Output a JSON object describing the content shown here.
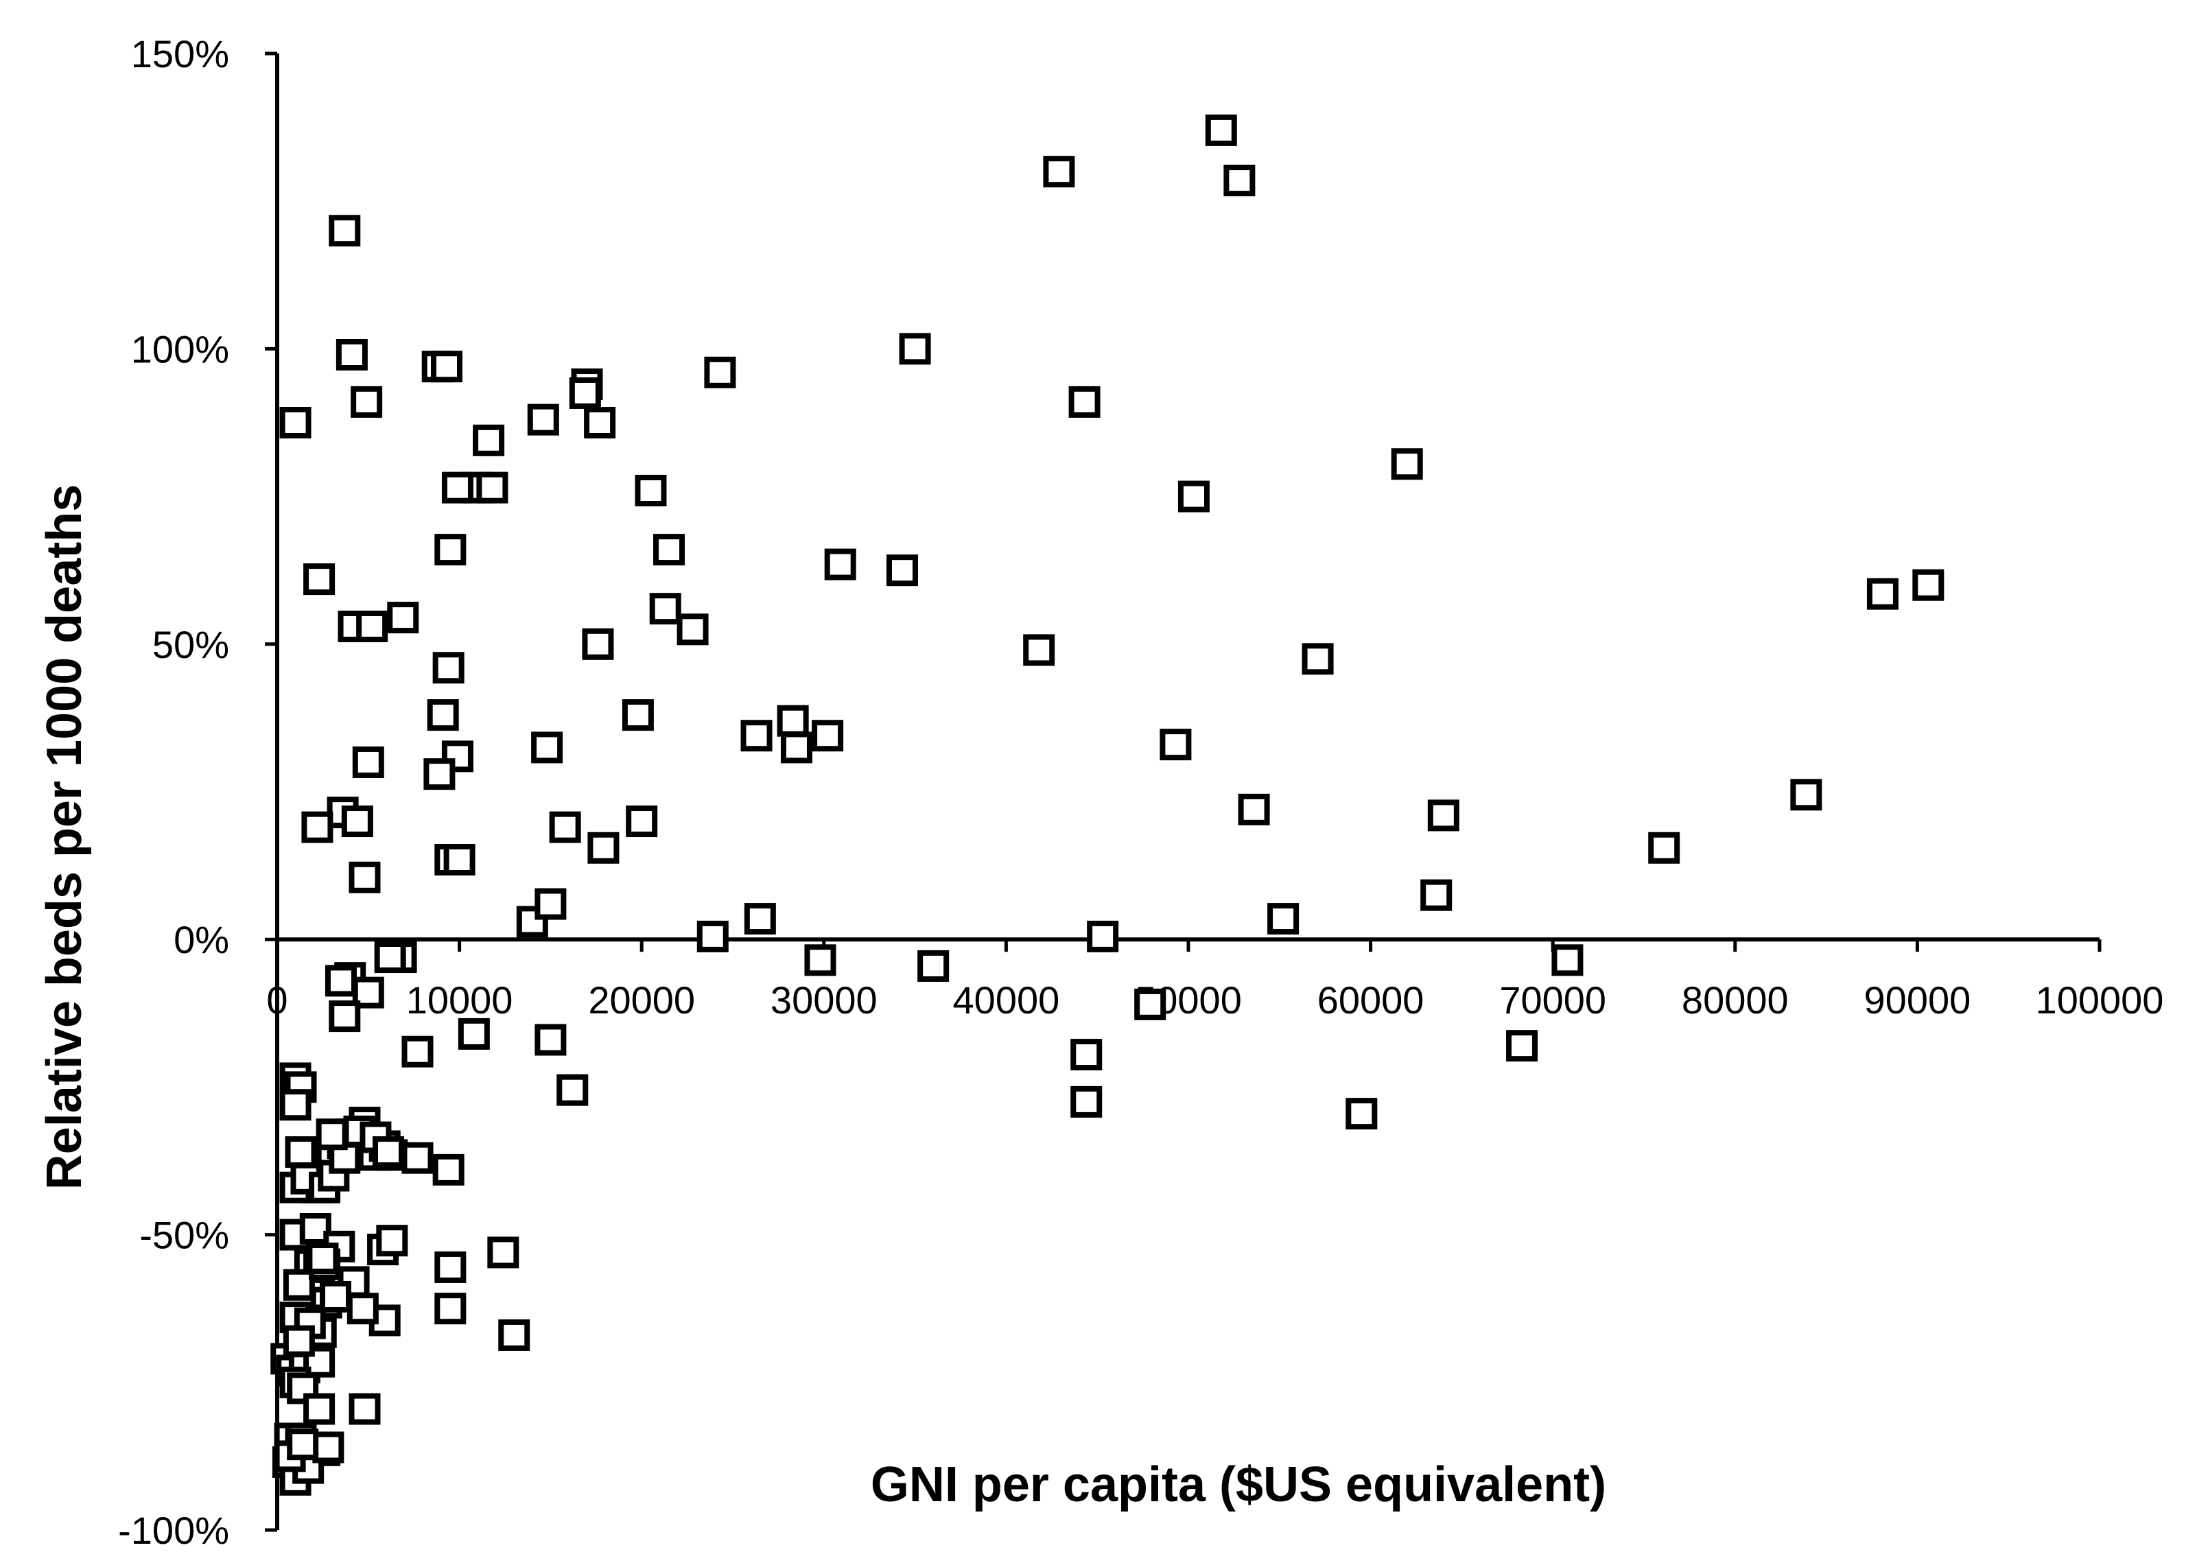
{
  "chart_data": {
    "type": "scatter",
    "xlabel": "GNI per capita ($US equivalent)",
    "ylabel": "Relative beds per 1000 deaths",
    "xlim": [
      0,
      100000
    ],
    "ylim": [
      -100,
      150
    ],
    "x_ticks": [
      0,
      10000,
      20000,
      30000,
      40000,
      50000,
      60000,
      70000,
      80000,
      90000,
      100000
    ],
    "x_tick_labels": [
      "0",
      "10000",
      "20000",
      "30000",
      "40000",
      "50000",
      "60000",
      "70000",
      "80000",
      "90000",
      "100000"
    ],
    "y_ticks": [
      150,
      100,
      50,
      0,
      -50,
      -100
    ],
    "y_tick_labels": [
      "150%",
      "100%",
      "50%",
      "0%",
      "-50%",
      "-100%"
    ],
    "grid": false,
    "legend": false,
    "marker": "hollow-square",
    "series": [
      {
        "x": [
          3700,
          4100,
          1000,
          2300,
          4900,
          4200,
          5200,
          6900,
          8800,
          9300,
          11600,
          14600,
          17000,
          16900,
          17700,
          24300,
          11000,
          9900,
          11800,
          20500,
          9500,
          21500,
          21300,
          22800,
          17600,
          19800,
          4800,
          14800,
          9400,
          9100,
          9900,
          8900,
          9500,
          10000,
          3600,
          2200,
          5000,
          4400,
          15800,
          17900,
          20000,
          14000,
          15000,
          26300,
          28300,
          28500,
          30200,
          26500,
          23900,
          35000,
          34300,
          30900,
          42900,
          44300,
          51800,
          52800,
          50300,
          49300,
          53600,
          55200,
          57100,
          62000,
          63600,
          64000,
          76100,
          83900,
          88100,
          90600,
          41800,
          45300,
          47900,
          44400,
          44400,
          59500,
          68300,
          70800,
          36000,
          29800,
          6800,
          6200,
          4000,
          5000,
          3500,
          3700,
          1000,
          1300,
          7700,
          10800,
          15000,
          16200
        ],
        "y": [
          120,
          99,
          87.5,
          61,
          91,
          53,
          53,
          54.5,
          97,
          97,
          84.5,
          88,
          94,
          92.5,
          87.5,
          96,
          76.5,
          76.5,
          76.5,
          76,
          66,
          66,
          56,
          52.5,
          50,
          38,
          10.5,
          32.5,
          46,
          38,
          31,
          28,
          13.5,
          13.5,
          21.5,
          19,
          30,
          20,
          19,
          15.5,
          20,
          3,
          6,
          34.5,
          37,
          32.5,
          34.5,
          3.5,
          0.5,
          100,
          62.5,
          63.5,
          130,
          91,
          137,
          128.5,
          75,
          33,
          22,
          3.5,
          47.5,
          80.5,
          7.5,
          21,
          15.5,
          24.5,
          58.5,
          60,
          49,
          0.5,
          -11,
          -19.5,
          -27.5,
          -29.5,
          -18,
          -3.5,
          -4.5,
          -3.5,
          -3,
          -3,
          -6.5,
          -9,
          -7,
          -13,
          -23.5,
          -25,
          -19,
          -16,
          -17,
          -25.5
        ]
      },
      {
        "x": [
          1300,
          2200,
          1000,
          1600,
          2600,
          3000,
          3600,
          4100,
          4800,
          5300,
          5900,
          6300,
          3100,
          3700,
          4500,
          5400,
          6100,
          7700,
          9400,
          1000,
          2100,
          3400,
          4200,
          5800,
          6300,
          9500,
          12400,
          9500,
          13000,
          5900,
          4700,
          1800,
          2300,
          1200,
          2700,
          3200,
          1700,
          2400,
          1000,
          500,
          800,
          1500,
          2300,
          1000,
          1400,
          2300,
          700,
          900,
          1500,
          1300,
          1800,
          2600,
          600,
          1000,
          1700,
          2800,
          700,
          1400,
          4800,
          3000,
          1000,
          2600,
          2500,
          1800,
          1200
        ],
        "y": [
          -36,
          -42,
          -42,
          -40.5,
          -42,
          -36.5,
          -34.5,
          -33,
          -31,
          -36.5,
          -35,
          -36.5,
          -40,
          -37,
          -32.5,
          -33.5,
          -36,
          -37,
          -39,
          -50,
          -49,
          -52,
          -58,
          -52.5,
          -51,
          -55.5,
          -53,
          -62.5,
          -67,
          -64.5,
          -62.5,
          -55,
          -55.5,
          -58.5,
          -61.5,
          -60.5,
          -64.5,
          -66.5,
          -64,
          -71,
          -73,
          -72.5,
          -71.5,
          -75,
          -76,
          -79.5,
          -84.5,
          -88,
          -86,
          -84.5,
          -86.5,
          -86.5,
          -88.5,
          -91.5,
          -89.5,
          -86,
          -87.5,
          -85.5,
          -79.5,
          -33,
          -28,
          -55,
          -54,
          -65,
          -68
        ]
      }
    ]
  }
}
